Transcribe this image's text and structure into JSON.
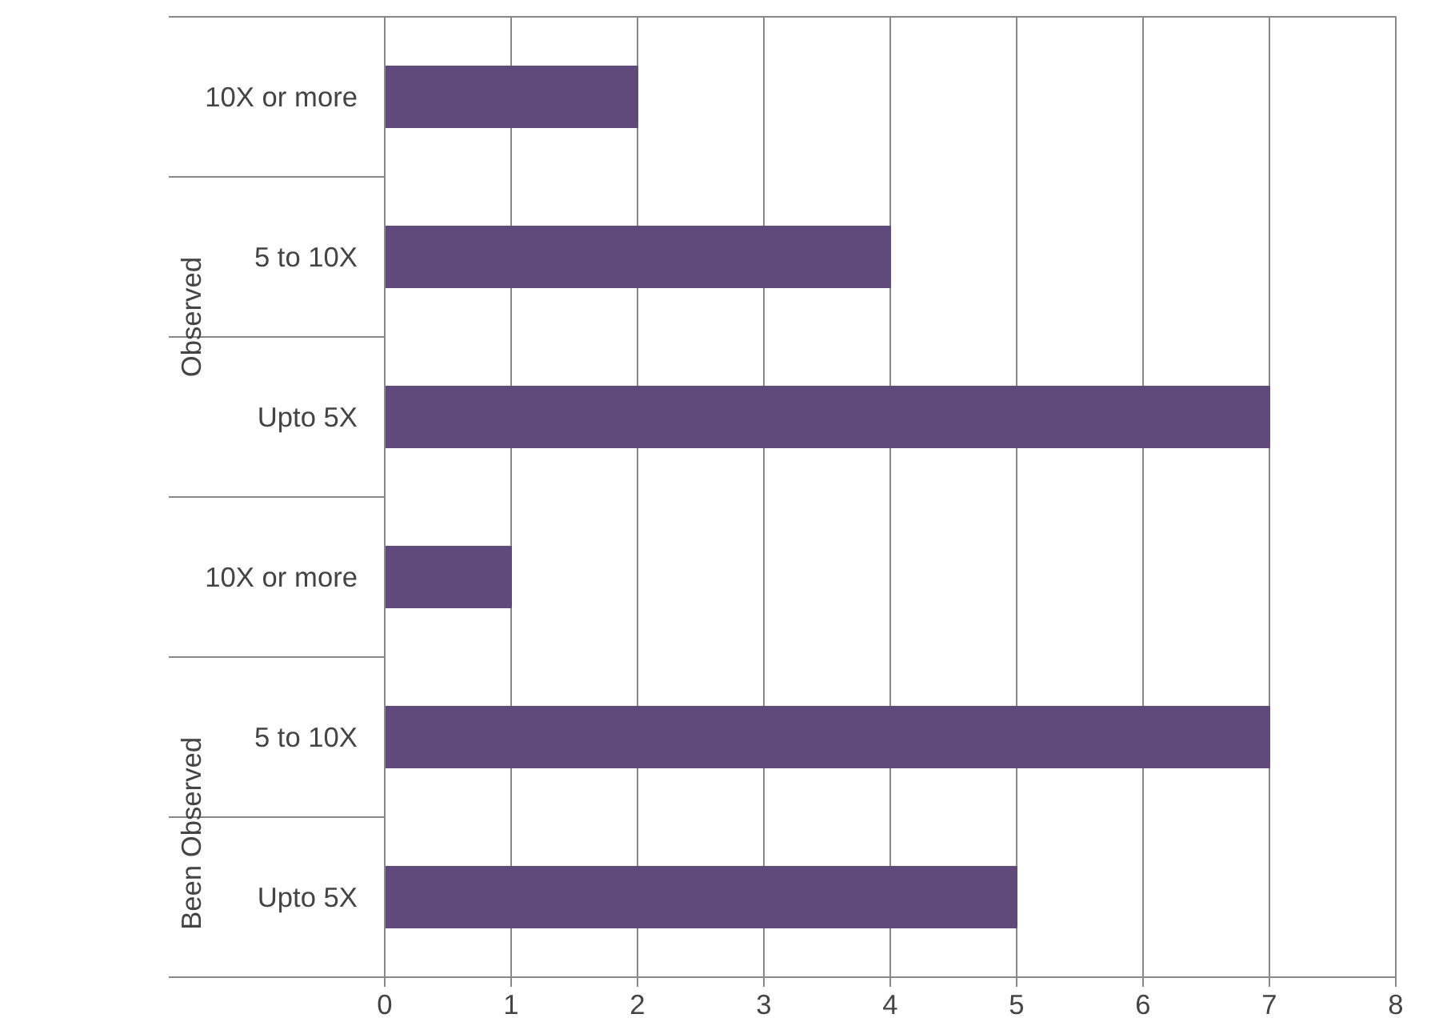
{
  "chart_data": {
    "type": "bar",
    "orientation": "horizontal",
    "categories": [
      "10X or more",
      "5 to 10X",
      "Upto 5X",
      "10X or more",
      "5 to 10X",
      "Upto 5X"
    ],
    "values": [
      2,
      4,
      7,
      1,
      7,
      5
    ],
    "color": "#604a7b",
    "annotations": [
      "Observed",
      "Been Observed"
    ],
    "xlim": [
      0,
      8
    ],
    "xticks": [
      0,
      1,
      2,
      3,
      4,
      5,
      6,
      7,
      8
    ],
    "grid": "x"
  }
}
